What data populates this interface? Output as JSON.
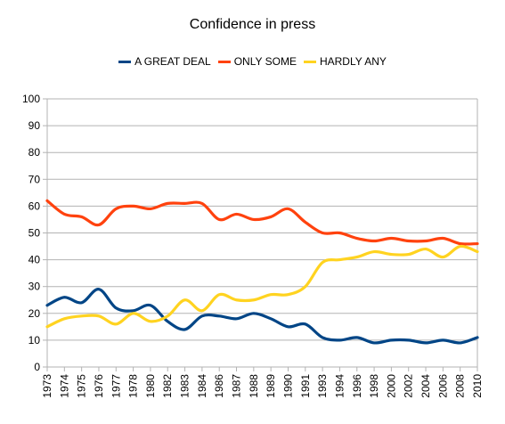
{
  "chart_data": {
    "type": "line",
    "title": "Confidence in press",
    "xlabel": "",
    "ylabel": "",
    "ylim": [
      0,
      100
    ],
    "yticks": [
      0,
      10,
      20,
      30,
      40,
      50,
      60,
      70,
      80,
      90,
      100
    ],
    "categories": [
      "1973",
      "1974",
      "1975",
      "1976",
      "1977",
      "1978",
      "1980",
      "1982",
      "1983",
      "1984",
      "1986",
      "1987",
      "1988",
      "1989",
      "1990",
      "1991",
      "1993",
      "1994",
      "1996",
      "1998",
      "2000",
      "2002",
      "2004",
      "2006",
      "2008",
      "2010"
    ],
    "grid": true,
    "legend": "top",
    "series": [
      {
        "name": "A GREAT DEAL",
        "color": "#004586",
        "values": [
          23,
          26,
          24,
          29,
          22,
          21,
          23,
          17,
          14,
          19,
          19,
          18,
          20,
          18,
          15,
          16,
          11,
          10,
          11,
          9,
          10,
          10,
          9,
          10,
          9,
          11
        ]
      },
      {
        "name": "ONLY SOME",
        "color": "#ff420e",
        "values": [
          62,
          57,
          56,
          53,
          59,
          60,
          59,
          61,
          61,
          61,
          55,
          57,
          55,
          56,
          59,
          54,
          50,
          50,
          48,
          47,
          48,
          47,
          47,
          48,
          46,
          46
        ]
      },
      {
        "name": "HARDLY ANY",
        "color": "#ffd320",
        "values": [
          15,
          18,
          19,
          19,
          16,
          20,
          17,
          19,
          25,
          21,
          27,
          25,
          25,
          27,
          27,
          30,
          39,
          40,
          41,
          43,
          42,
          42,
          44,
          41,
          45,
          43
        ]
      }
    ]
  }
}
